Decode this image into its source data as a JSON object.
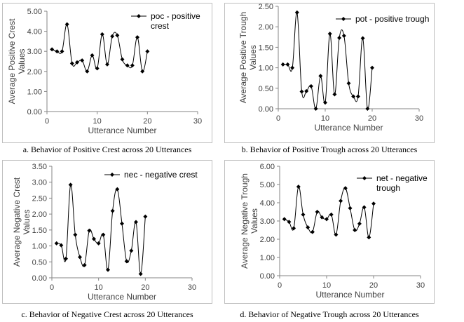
{
  "chart_data": [
    {
      "type": "line",
      "ylabel": "Average Positive Crest Values",
      "xlabel": "Utterance Number",
      "legend": "poc - positive crest",
      "legend_position": "top-right",
      "ylim": [
        0,
        5
      ],
      "yticks": [
        "0.00",
        "1.00",
        "2.00",
        "3.00",
        "4.00",
        "5.00"
      ],
      "xlim": [
        0,
        30
      ],
      "xticks": [
        "0",
        "10",
        "20",
        "30"
      ],
      "series": [
        {
          "name": "poc - positive crest",
          "x": [
            1,
            2,
            3,
            4,
            5,
            6,
            7,
            8,
            9,
            10,
            11,
            12,
            13,
            14,
            15,
            16,
            17,
            18,
            19,
            20
          ],
          "y": [
            3.1,
            3.0,
            3.0,
            4.35,
            2.4,
            2.45,
            2.55,
            2.0,
            2.8,
            2.15,
            3.85,
            2.35,
            3.75,
            3.8,
            2.6,
            2.3,
            2.3,
            3.7,
            2.0,
            3.0
          ]
        }
      ],
      "caption": "a. Behavior of Positive Crest across 20 Utterances"
    },
    {
      "type": "line",
      "ylabel": "Average Positive Trough Values",
      "xlabel": "Utterance Number",
      "legend": "pot - positive trough",
      "legend_position": "top-right",
      "ylim": [
        0,
        2.5
      ],
      "yticks": [
        "0.00",
        "0.50",
        "1.00",
        "1.50",
        "2.00",
        "2.50"
      ],
      "xlim": [
        0,
        30
      ],
      "xticks": [
        "0",
        "10",
        "20",
        "30"
      ],
      "series": [
        {
          "name": "pot - positive trough",
          "x": [
            1,
            2,
            3,
            4,
            5,
            6,
            7,
            8,
            9,
            10,
            11,
            12,
            13,
            14,
            15,
            16,
            17,
            18,
            19,
            20
          ],
          "y": [
            1.08,
            1.08,
            1.0,
            2.35,
            0.42,
            0.43,
            0.55,
            0.0,
            0.8,
            0.15,
            1.83,
            0.35,
            1.73,
            1.78,
            0.62,
            0.3,
            0.3,
            1.72,
            0.0,
            1.0
          ]
        }
      ],
      "caption": "b. Behavior of Positive Trough across 20 Utterances"
    },
    {
      "type": "line",
      "ylabel": "Average Negative Crest Values",
      "xlabel": "Utterance Number",
      "legend": "nec - negative crest",
      "legend_position": "top-right",
      "ylim": [
        0,
        3.5
      ],
      "yticks": [
        "0.00",
        "0.50",
        "1.00",
        "1.50",
        "2.00",
        "2.50",
        "3.00",
        "3.50"
      ],
      "xlim": [
        0,
        30
      ],
      "xticks": [
        "0",
        "10",
        "20",
        "30"
      ],
      "series": [
        {
          "name": "nec - negative crest",
          "x": [
            1,
            2,
            3,
            4,
            5,
            6,
            7,
            8,
            9,
            10,
            11,
            12,
            13,
            14,
            15,
            16,
            17,
            18,
            19,
            20
          ],
          "y": [
            1.08,
            1.02,
            0.6,
            2.92,
            1.35,
            0.65,
            0.4,
            1.48,
            1.22,
            1.08,
            1.35,
            0.25,
            2.1,
            2.78,
            1.7,
            0.52,
            0.85,
            1.75,
            0.12,
            1.92
          ]
        }
      ],
      "caption": "c. Behavior of Negative Crest across 20 Utterances"
    },
    {
      "type": "line",
      "ylabel": "Average Negative Trough Values",
      "xlabel": "Utterance Number",
      "legend": "net - negative trough",
      "legend_position": "top-right",
      "ylim": [
        0,
        6
      ],
      "yticks": [
        "0.00",
        "1.00",
        "2.00",
        "3.00",
        "4.00",
        "5.00",
        "6.00"
      ],
      "xlim": [
        0,
        30
      ],
      "xticks": [
        "0",
        "10",
        "20",
        "30"
      ],
      "series": [
        {
          "name": "net - negative trough",
          "x": [
            1,
            2,
            3,
            4,
            5,
            6,
            7,
            8,
            9,
            10,
            11,
            12,
            13,
            14,
            15,
            16,
            17,
            18,
            19,
            20
          ],
          "y": [
            3.1,
            2.95,
            2.6,
            4.88,
            3.35,
            2.65,
            2.4,
            3.5,
            3.2,
            3.1,
            3.35,
            2.25,
            4.1,
            4.8,
            3.7,
            2.5,
            2.85,
            3.75,
            2.1,
            3.95
          ]
        }
      ],
      "caption": "d. Behavior of Negative Trough across 20 Utterances"
    }
  ],
  "colors": {
    "series": "#000000",
    "axis": "#868686",
    "text": "#404040"
  }
}
